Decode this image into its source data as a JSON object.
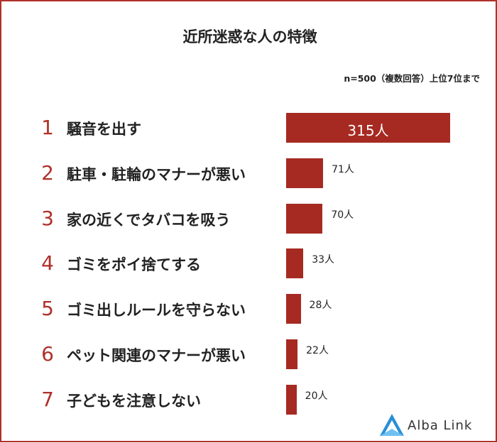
{
  "title": "近所迷惑な人の特徴",
  "note": "n=500（複数回答）上位7位まで",
  "unit": "人",
  "colors": {
    "bar": "#a62a22",
    "rank": "#b0302a",
    "border": "#b0302a",
    "logo": "#2a8fd6"
  },
  "chart_data": {
    "type": "bar",
    "orientation": "horizontal",
    "categories": [
      "騒音を出す",
      "駐車・駐輪のマナーが悪い",
      "家の近くでタバコを吸う",
      "ゴミをポイ捨てする",
      "ゴミ出しルールを守らない",
      "ペット関連のマナーが悪い",
      "子どもを注意しない"
    ],
    "ranks": [
      "1",
      "2",
      "3",
      "4",
      "5",
      "6",
      "7"
    ],
    "values": [
      315,
      71,
      70,
      33,
      28,
      22,
      20
    ],
    "value_labels": [
      "315人",
      "71人",
      "70人",
      "33人",
      "28人",
      "22人",
      "20人"
    ]
  },
  "logo": {
    "text": "Alba Link",
    "icon": "alba-link-logo-icon"
  }
}
